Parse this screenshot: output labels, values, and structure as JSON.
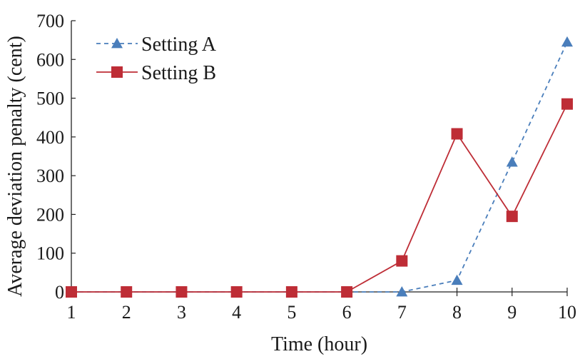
{
  "chart_data": {
    "type": "line",
    "xlabel": "Time (hour)",
    "ylabel": "Average deviation penalty (cent)",
    "x": [
      1,
      2,
      3,
      4,
      5,
      6,
      7,
      8,
      9,
      10
    ],
    "xlim": [
      1,
      10
    ],
    "ylim": [
      0,
      700
    ],
    "yticks": [
      0,
      100,
      200,
      300,
      400,
      500,
      600,
      700
    ],
    "grid": false,
    "legend_position": "top-left",
    "series": [
      {
        "name": "Setting A",
        "marker": "triangle",
        "line_style": "dashed",
        "color": "#4a7ebb",
        "values": [
          0,
          0,
          0,
          0,
          0,
          0,
          0,
          30,
          335,
          645
        ]
      },
      {
        "name": "Setting B",
        "marker": "square",
        "line_style": "solid",
        "color": "#be2d36",
        "values": [
          0,
          0,
          0,
          0,
          0,
          0,
          80,
          408,
          195,
          485
        ]
      }
    ]
  }
}
